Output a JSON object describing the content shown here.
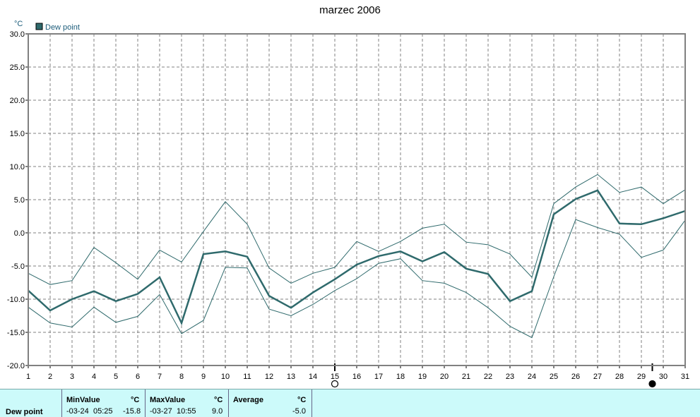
{
  "title": "marzec 2006",
  "chart_data": {
    "type": "line",
    "unit_label": "°C",
    "legend": [
      "Dew point"
    ],
    "x": [
      1,
      2,
      3,
      4,
      5,
      6,
      7,
      8,
      9,
      10,
      11,
      12,
      13,
      14,
      15,
      16,
      17,
      18,
      19,
      20,
      21,
      22,
      23,
      24,
      25,
      26,
      27,
      28,
      29,
      30,
      31
    ],
    "xlim": [
      1,
      31
    ],
    "ylim": [
      -20,
      30
    ],
    "yticks": [
      "30.0",
      "25.0",
      "20.0",
      "15.0",
      "10.0",
      "5.0",
      "0.0",
      "-5.0",
      "-10.0",
      "-15.0",
      "-20.0"
    ],
    "grid": true,
    "series": [
      {
        "name": "Dew point",
        "values": [
          -8.7,
          -11.7,
          -10.0,
          -8.8,
          -10.3,
          -9.2,
          -6.7,
          -13.6,
          -3.2,
          -2.8,
          -3.6,
          -9.5,
          -11.3,
          -9.0,
          -7.0,
          -4.8,
          -3.5,
          -2.8,
          -4.3,
          -2.9,
          -5.4,
          -6.2,
          -10.3,
          -8.8,
          2.8,
          5.1,
          6.4,
          1.4,
          1.3,
          2.2,
          3.3
        ]
      },
      {
        "values": [
          -6.1,
          -7.8,
          -7.2,
          -2.2,
          -4.5,
          -7.0,
          -2.6,
          -4.4,
          0.2,
          4.7,
          1.3,
          -5.3,
          -7.6,
          -6.1,
          -5.2,
          -1.3,
          -2.8,
          -1.3,
          0.7,
          1.3,
          -1.4,
          -1.8,
          -3.2,
          -6.7,
          4.4,
          6.9,
          8.8,
          6.1,
          6.9,
          4.4,
          6.5
        ]
      },
      {
        "values": [
          -11.2,
          -13.6,
          -14.2,
          -11.2,
          -13.5,
          -12.6,
          -9.3,
          -15.2,
          -13.2,
          -5.2,
          -5.3,
          -11.5,
          -12.5,
          -10.8,
          -8.7,
          -6.9,
          -4.6,
          -3.9,
          -7.2,
          -7.6,
          -9.0,
          -11.3,
          -14.1,
          -15.8,
          -6.6,
          2.0,
          0.8,
          -0.2,
          -3.7,
          -2.6,
          1.9
        ]
      }
    ],
    "markers": [
      {
        "label": "full-moon",
        "x": 15
      },
      {
        "label": "new-moon",
        "x": 29.5
      }
    ]
  },
  "stats": {
    "row_label": "Dew point",
    "min_header": "MinValue",
    "min_date": "-03-24",
    "min_time": "05:25",
    "min_value": "-15.8",
    "max_header": "MaxValue",
    "max_date": "-03-27",
    "max_time": "10:55",
    "max_value": "9.0",
    "avg_header": "Average",
    "avg_value": "-5.0",
    "unit": "°C"
  }
}
